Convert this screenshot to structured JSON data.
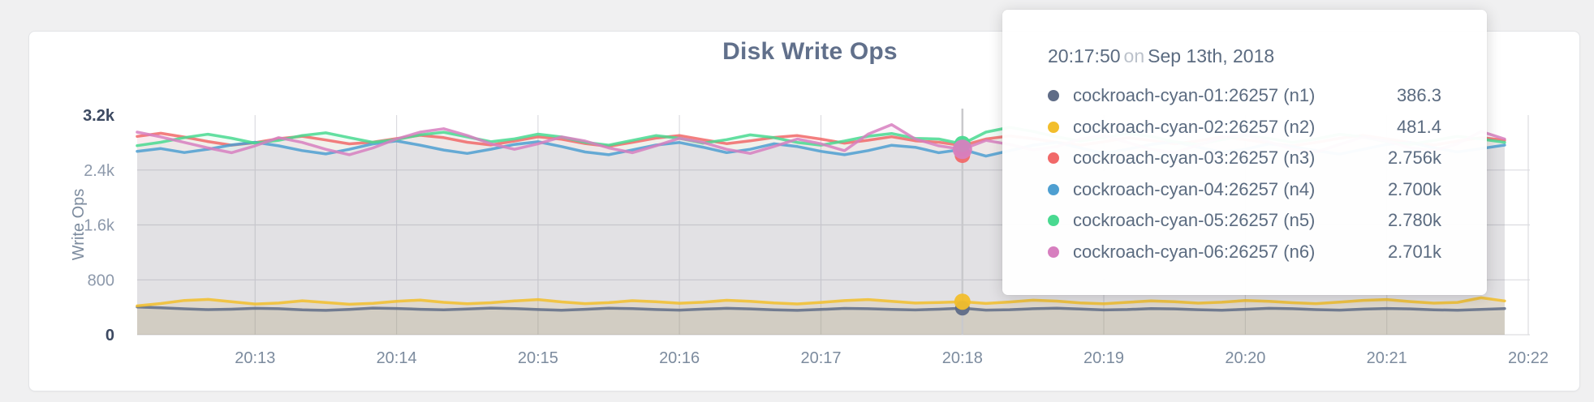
{
  "page": {
    "background": "#f0f0f1"
  },
  "chart_data": {
    "type": "area",
    "title": "Disk Write Ops",
    "ylabel": "Write Ops",
    "xlabel": "",
    "ylim": [
      0,
      3200
    ],
    "grid": true,
    "legend_position": "tooltip-overlay",
    "x_start": "20:12:10",
    "interval_seconds": 10,
    "x_ticks": [
      "20:13",
      "20:14",
      "20:15",
      "20:16",
      "20:17",
      "20:18",
      "20:19",
      "20:20",
      "20:21",
      "20:22"
    ],
    "y_ticks": [
      {
        "label": "3.2k",
        "value": 3200,
        "emph": true,
        "grid": false
      },
      {
        "label": "2.4k",
        "value": 2400,
        "emph": false,
        "grid": true
      },
      {
        "label": "1.6k",
        "value": 1600,
        "emph": false,
        "grid": true
      },
      {
        "label": "800",
        "value": 800,
        "emph": false,
        "grid": true
      },
      {
        "label": "0",
        "value": 0,
        "emph": true,
        "grid": false
      }
    ],
    "series": [
      {
        "name": "cockroach-cyan-01:26257 (n1)",
        "node": "n1",
        "color": "#5F6C87",
        "values": [
          405,
          392,
          378,
          366,
          372,
          385,
          379,
          363,
          355,
          368,
          388,
          383,
          371,
          362,
          374,
          389,
          381,
          367,
          357,
          371,
          386,
          380,
          367,
          359,
          373,
          385,
          377,
          363,
          356,
          369,
          384,
          379,
          368,
          361,
          372,
          386.3,
          359,
          365,
          379,
          387,
          375,
          361,
          367,
          381,
          377,
          365,
          357,
          371,
          385,
          379,
          366,
          359,
          373,
          383,
          377,
          364,
          357,
          369,
          381
        ]
      },
      {
        "name": "cockroach-cyan-02:26257 (n2)",
        "node": "n2",
        "color": "#F2BE2C",
        "values": [
          420,
          455,
          500,
          515,
          482,
          448,
          462,
          495,
          470,
          444,
          458,
          487,
          505,
          472,
          451,
          466,
          492,
          512,
          478,
          453,
          468,
          496,
          481,
          459,
          473,
          502,
          487,
          463,
          449,
          471,
          497,
          512,
          486,
          462,
          470,
          481.4,
          456,
          477,
          503,
          490,
          464,
          451,
          472,
          494,
          482,
          460,
          474,
          498,
          486,
          466,
          453,
          475,
          501,
          513,
          483,
          461,
          471,
          538,
          492
        ]
      },
      {
        "name": "cockroach-cyan-03:26257 (n3)",
        "node": "n3",
        "color": "#F16969",
        "values": [
          2890,
          2935,
          2880,
          2815,
          2762,
          2798,
          2856,
          2892,
          2838,
          2781,
          2806,
          2858,
          2906,
          2872,
          2804,
          2764,
          2822,
          2884,
          2848,
          2786,
          2745,
          2803,
          2865,
          2903,
          2842,
          2784,
          2824,
          2874,
          2901,
          2851,
          2792,
          2834,
          2885,
          2826,
          2804,
          2756,
          2852,
          2897,
          2858,
          2803,
          2762,
          2812,
          2871,
          2832,
          2781,
          2823,
          2882,
          2843,
          2791,
          2753,
          2802,
          2862,
          2904,
          2853,
          2801,
          2763,
          2821,
          2872,
          2834
        ]
      },
      {
        "name": "cockroach-cyan-04:26257 (n4)",
        "node": "n4",
        "color": "#4E9FD1",
        "values": [
          2672,
          2712,
          2654,
          2703,
          2764,
          2805,
          2752,
          2683,
          2634,
          2702,
          2781,
          2823,
          2762,
          2691,
          2642,
          2703,
          2772,
          2812,
          2742,
          2663,
          2622,
          2692,
          2763,
          2801,
          2732,
          2653,
          2702,
          2782,
          2742,
          2672,
          2623,
          2683,
          2761,
          2731,
          2652,
          2700,
          2602,
          2682,
          2762,
          2803,
          2722,
          2642,
          2703,
          2771,
          2812,
          2732,
          2662,
          2703,
          2781,
          2742,
          2682,
          2632,
          2702,
          2772,
          2801,
          2723,
          2663,
          2712,
          2763
        ]
      },
      {
        "name": "cockroach-cyan-05:26257 (n5)",
        "node": "n5",
        "color": "#49D990",
        "values": [
          2755,
          2805,
          2872,
          2921,
          2863,
          2792,
          2833,
          2902,
          2941,
          2872,
          2803,
          2843,
          2912,
          2951,
          2882,
          2812,
          2853,
          2922,
          2881,
          2803,
          2762,
          2832,
          2901,
          2862,
          2792,
          2842,
          2912,
          2872,
          2802,
          2762,
          2822,
          2892,
          2932,
          2861,
          2852,
          2780,
          2952,
          3022,
          2961,
          2882,
          2822,
          2872,
          2931,
          2891,
          2812,
          2772,
          2842,
          2902,
          2861,
          2802,
          2852,
          2921,
          2881,
          2812,
          2772,
          2832,
          2891,
          2852,
          2802
        ]
      },
      {
        "name": "cockroach-cyan-06:26257 (n6)",
        "node": "n6",
        "color": "#D77FBF",
        "values": [
          2952,
          2882,
          2802,
          2722,
          2652,
          2752,
          2872,
          2802,
          2702,
          2622,
          2722,
          2852,
          2952,
          3002,
          2902,
          2782,
          2702,
          2782,
          2882,
          2822,
          2722,
          2652,
          2752,
          2862,
          2802,
          2702,
          2642,
          2742,
          2852,
          2782,
          2682,
          2922,
          3062,
          2852,
          2752,
          2701,
          2832,
          2772,
          2692,
          2742,
          2852,
          2902,
          2802,
          2702,
          2652,
          2762,
          2872,
          2912,
          2812,
          2702,
          2662,
          2772,
          2882,
          2822,
          2722,
          2682,
          2782,
          2962,
          2852
        ]
      }
    ],
    "hover": {
      "index": 35,
      "time": "20:17:50",
      "date": "Sep 13th, 2018",
      "values": [
        386.3,
        481.4,
        2756,
        2700,
        2780,
        2701
      ]
    }
  },
  "tooltip": {
    "time": "20:17:50",
    "on_word": "on",
    "date": "Sep 13th, 2018",
    "rows": [
      {
        "name": "cockroach-cyan-01:26257 (n1)",
        "value": "386.3",
        "color": "#5F6C87"
      },
      {
        "name": "cockroach-cyan-02:26257 (n2)",
        "value": "481.4",
        "color": "#F2BE2C"
      },
      {
        "name": "cockroach-cyan-03:26257 (n3)",
        "value": "2.756k",
        "color": "#F16969"
      },
      {
        "name": "cockroach-cyan-04:26257 (n4)",
        "value": "2.700k",
        "color": "#4E9FD1"
      },
      {
        "name": "cockroach-cyan-05:26257 (n5)",
        "value": "2.780k",
        "color": "#49D990"
      },
      {
        "name": "cockroach-cyan-06:26257 (n6)",
        "value": "2.701k",
        "color": "#D77FBF"
      }
    ]
  }
}
